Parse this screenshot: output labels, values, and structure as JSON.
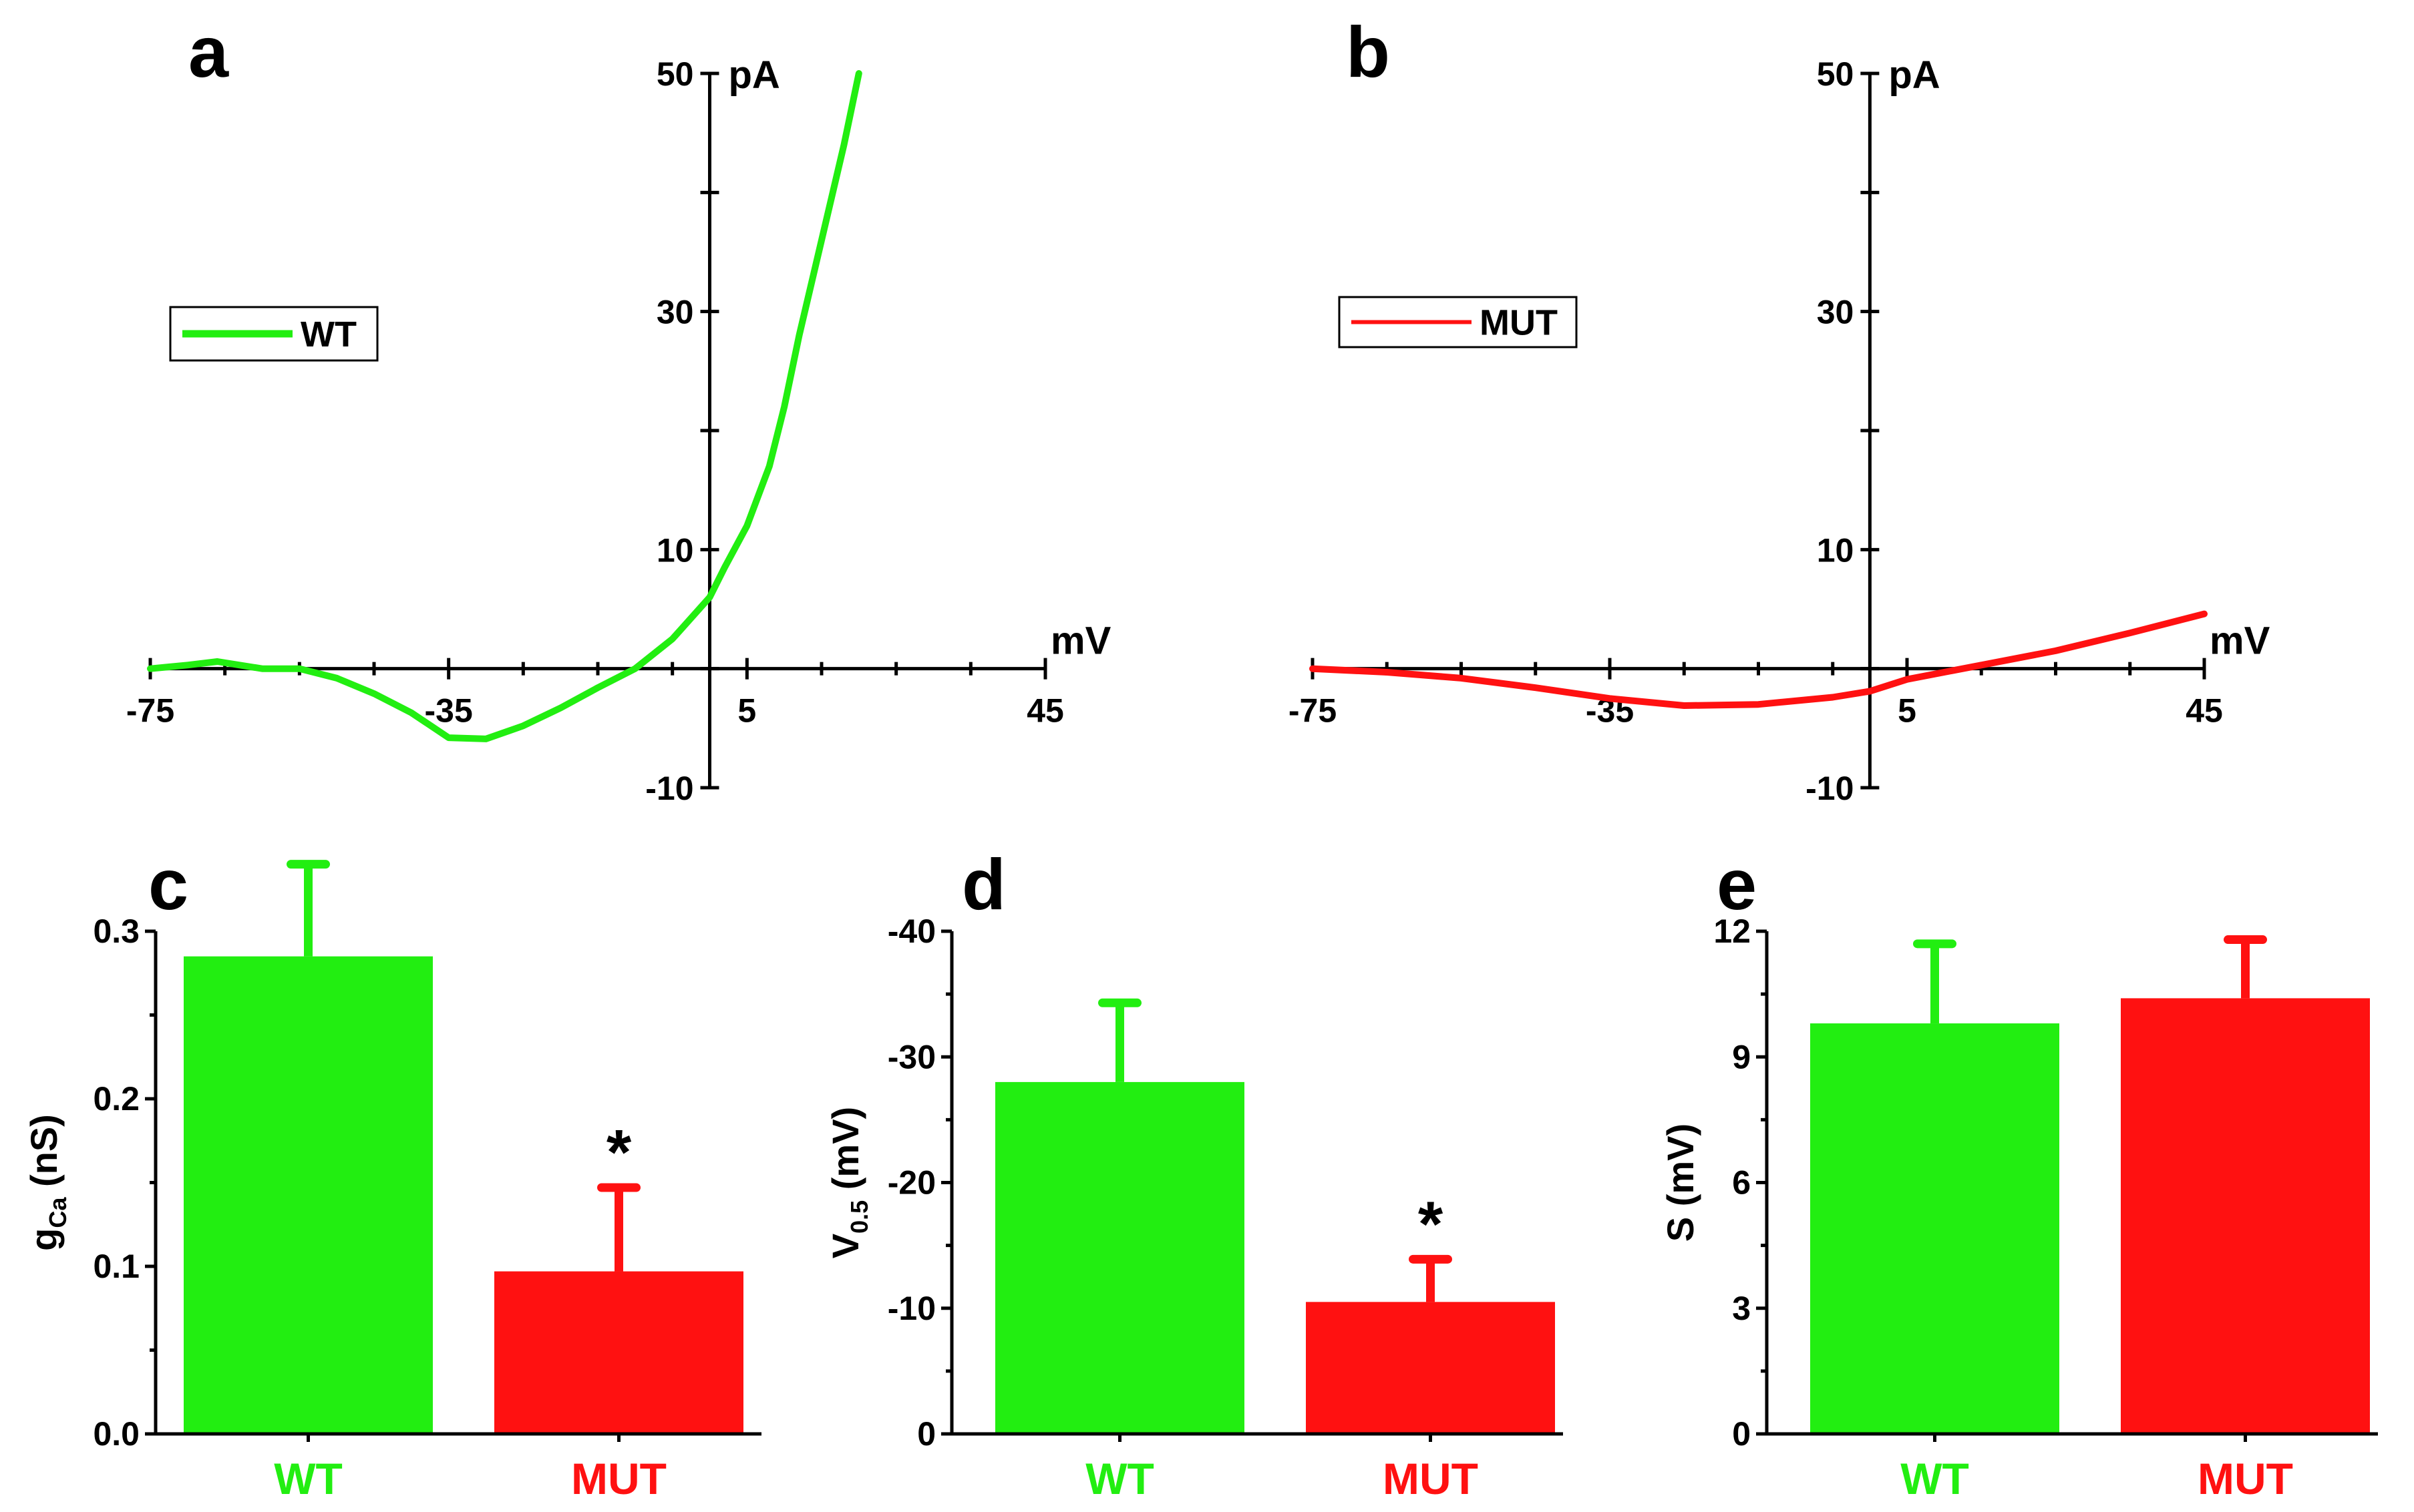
{
  "colors": {
    "wt": "#22ee11",
    "mut": "#ff1111",
    "axis": "#000000"
  },
  "chart_data": [
    {
      "panel": "a",
      "type": "line",
      "series": [
        {
          "name": "WT",
          "color": "#22ee11",
          "x": [
            -75,
            -70,
            -66,
            -60,
            -55,
            -50,
            -45,
            -40,
            -35,
            -30,
            -25,
            -20,
            -15,
            -10,
            -5,
            0,
            2,
            5,
            8,
            10,
            12,
            15,
            18,
            20
          ],
          "y": [
            0,
            0.3,
            0.6,
            0,
            0,
            -0.8,
            -2.1,
            -3.7,
            -5.8,
            -5.9,
            -4.8,
            -3.3,
            -1.6,
            0,
            2.5,
            6,
            8.5,
            12,
            17,
            22,
            28,
            36,
            44,
            50
          ]
        }
      ],
      "x_ticks": [
        "-75",
        "-35",
        "5",
        "45"
      ],
      "y_ticks": [
        "50",
        "30",
        "10",
        "-10"
      ],
      "xlim": [
        -75,
        45
      ],
      "ylim": [
        -10,
        50
      ],
      "x_unit": "mV",
      "y_unit": "pA",
      "legend": "WT"
    },
    {
      "panel": "b",
      "type": "line",
      "series": [
        {
          "name": "MUT",
          "color": "#ff1111",
          "x": [
            -75,
            -65,
            -55,
            -45,
            -35,
            -25,
            -15,
            -5,
            0,
            5,
            15,
            25,
            35,
            45
          ],
          "y": [
            0,
            -0.3,
            -0.8,
            -1.6,
            -2.5,
            -3.1,
            -3,
            -2.4,
            -1.9,
            -0.9,
            0.3,
            1.5,
            3,
            4.6
          ]
        }
      ],
      "x_ticks": [
        "-75",
        "-35",
        "5",
        "45"
      ],
      "y_ticks": [
        "50",
        "30",
        "10",
        "-10"
      ],
      "xlim": [
        -75,
        45
      ],
      "ylim": [
        -10,
        50
      ],
      "x_unit": "mV",
      "y_unit": "pA",
      "legend": "MUT"
    },
    {
      "panel": "c",
      "type": "bar",
      "categories": [
        "WT",
        "MUT"
      ],
      "values": [
        0.285,
        0.097
      ],
      "errors": [
        0.055,
        0.05
      ],
      "colors": [
        "#22ee11",
        "#ff1111"
      ],
      "significance": [
        "",
        "*"
      ],
      "ylabel_main": "g",
      "ylabel_sub": "Ca",
      "ylabel_unit": "(nS)",
      "ylim": [
        0,
        0.3
      ],
      "y_ticks": [
        "0.0",
        "0.1",
        "0.2",
        "0.3"
      ]
    },
    {
      "panel": "d",
      "type": "bar",
      "categories": [
        "WT",
        "MUT"
      ],
      "values": [
        -28,
        -10.5
      ],
      "errors": [
        6.3,
        3.4
      ],
      "colors": [
        "#22ee11",
        "#ff1111"
      ],
      "significance": [
        "",
        "*"
      ],
      "ylabel_main": "V",
      "ylabel_sub": "0.5",
      "ylabel_unit": "(mV)",
      "ylim": [
        0,
        -40
      ],
      "y_ticks": [
        "0",
        "-10",
        "-20",
        "-30",
        "-40"
      ]
    },
    {
      "panel": "e",
      "type": "bar",
      "categories": [
        "WT",
        "MUT"
      ],
      "values": [
        9.8,
        10.4
      ],
      "errors": [
        1.9,
        1.4
      ],
      "colors": [
        "#22ee11",
        "#ff1111"
      ],
      "significance": [
        "",
        ""
      ],
      "ylabel_main": "S",
      "ylabel_sub": "",
      "ylabel_unit": "(mV)",
      "ylim": [
        0,
        12
      ],
      "y_ticks": [
        "0",
        "3",
        "6",
        "9",
        "12"
      ]
    }
  ]
}
